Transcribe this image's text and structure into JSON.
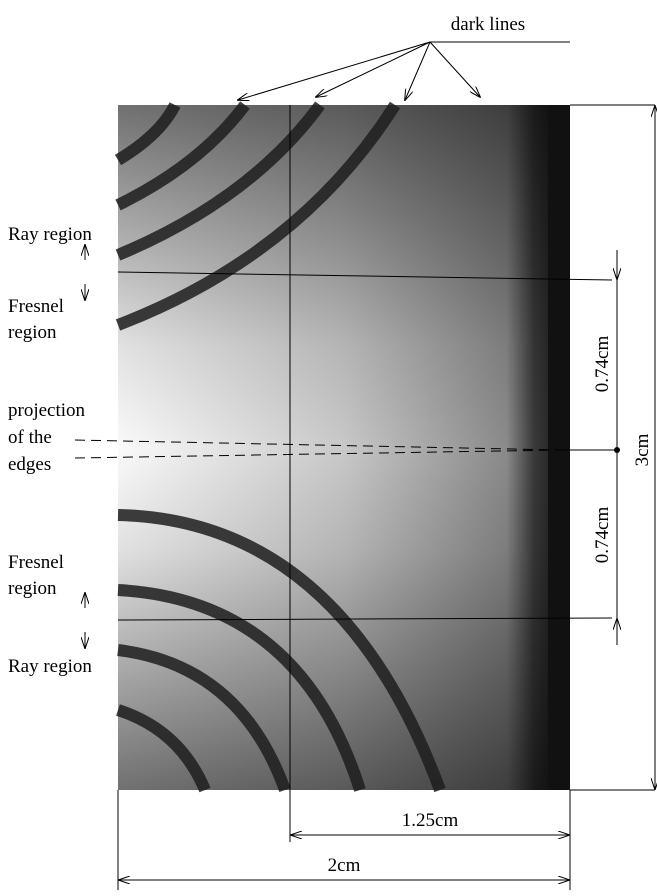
{
  "labels": {
    "dark_lines": "dark lines",
    "top_ray": "Ray region",
    "top_fresnel": [
      "Fresnel",
      "region"
    ],
    "projection": [
      "projection",
      "of the",
      "edges"
    ],
    "bottom_fresnel": [
      "Fresnel",
      "region"
    ],
    "bottom_ray": "Ray region"
  },
  "dimensions": {
    "upper_half": "0.74cm",
    "lower_half": "0.74cm",
    "height": "3cm",
    "center_to_edge": "1.25cm",
    "width": "2cm"
  }
}
